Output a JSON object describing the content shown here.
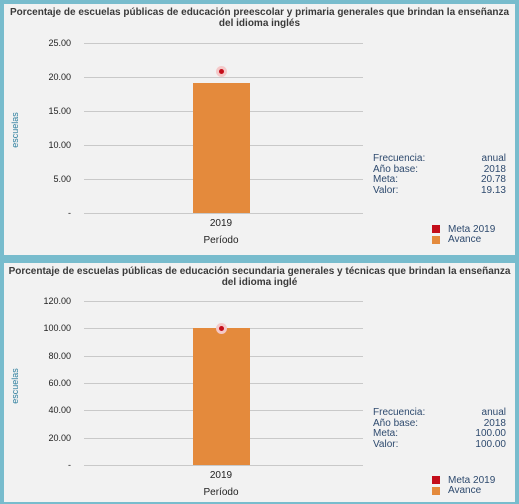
{
  "colors": {
    "background": "#78bccd",
    "panel": "#f2f2f2",
    "avance": "#e48a3c",
    "meta": "#c40d1a"
  },
  "chart_data": [
    {
      "type": "bar",
      "title": "Porcentaje de escuelas públicas de educación preescolar y primaria generales que brindan la enseñanza del idioma inglés",
      "ylabel": "escuelas",
      "xlabel": "Período",
      "categories": [
        "2019"
      ],
      "ylim": [
        0,
        25
      ],
      "yticks": [
        25,
        20,
        15,
        10,
        5,
        0
      ],
      "ytick_labels": [
        "25.00",
        "20.00",
        "15.00",
        "10.00",
        "5.00",
        "-"
      ],
      "series": [
        {
          "name": "Avance",
          "values": [
            19.13
          ]
        },
        {
          "name": "Meta 2019",
          "values": [
            20.78
          ]
        }
      ],
      "info": [
        {
          "label": "Frecuencia:",
          "value": "anual"
        },
        {
          "label": "Año base:",
          "value": "2018"
        },
        {
          "label": "Meta:",
          "value": "20.78"
        },
        {
          "label": "Valor:",
          "value": "19.13"
        }
      ],
      "legend": [
        "Meta 2019",
        "Avance"
      ],
      "grid": true,
      "legend_position": "bottom-right"
    },
    {
      "type": "bar",
      "title": "Porcentaje de escuelas públicas de educación secundaria generales y técnicas que brindan la enseñanza del idioma inglé",
      "ylabel": "escuelas",
      "xlabel": "Período",
      "categories": [
        "2019"
      ],
      "ylim": [
        0,
        120
      ],
      "yticks": [
        120,
        100,
        80,
        60,
        40,
        20,
        0
      ],
      "ytick_labels": [
        "120.00",
        "100.00",
        "80.00",
        "60.00",
        "40.00",
        "20.00",
        "-"
      ],
      "series": [
        {
          "name": "Avance",
          "values": [
            100.0
          ]
        },
        {
          "name": "Meta 2019",
          "values": [
            100.0
          ]
        }
      ],
      "info": [
        {
          "label": "Frecuencia:",
          "value": "anual"
        },
        {
          "label": "Año base:",
          "value": "2018"
        },
        {
          "label": "Meta:",
          "value": "100.00"
        },
        {
          "label": "Valor:",
          "value": "100.00"
        }
      ],
      "legend": [
        "Meta 2019",
        "Avance"
      ],
      "grid": true,
      "legend_position": "bottom-right"
    }
  ]
}
